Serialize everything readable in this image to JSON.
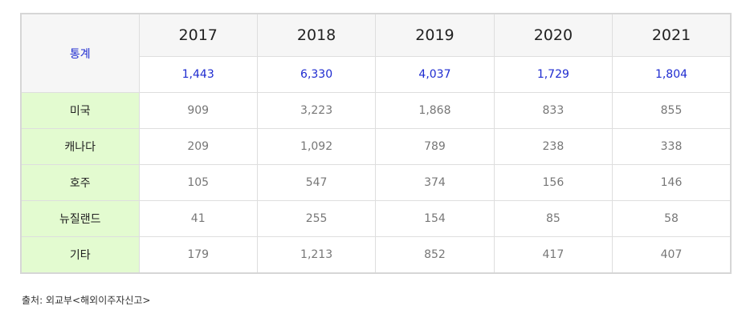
{
  "table": {
    "corner_label": "통계",
    "years": [
      "2017",
      "2018",
      "2019",
      "2020",
      "2021"
    ],
    "totals": [
      "1,443",
      "6,330",
      "4,037",
      "1,729",
      "1,804"
    ],
    "rows": [
      {
        "label": "미국",
        "values": [
          "909",
          "3,223",
          "1,868",
          "833",
          "855"
        ]
      },
      {
        "label": "캐나다",
        "values": [
          "209",
          "1,092",
          "789",
          "238",
          "338"
        ]
      },
      {
        "label": "호주",
        "values": [
          "105",
          "547",
          "374",
          "156",
          "146"
        ]
      },
      {
        "label": "뉴질랜드",
        "values": [
          "41",
          "255",
          "154",
          "85",
          "58"
        ]
      },
      {
        "label": "기타",
        "values": [
          "179",
          "1,213",
          "852",
          "417",
          "407"
        ]
      }
    ]
  },
  "source": "출처: 외교부<해외이주자신고>",
  "colors": {
    "link_blue": "#1e2bd0",
    "label_green": "#e3fbd0",
    "header_gray": "#f6f6f6"
  }
}
